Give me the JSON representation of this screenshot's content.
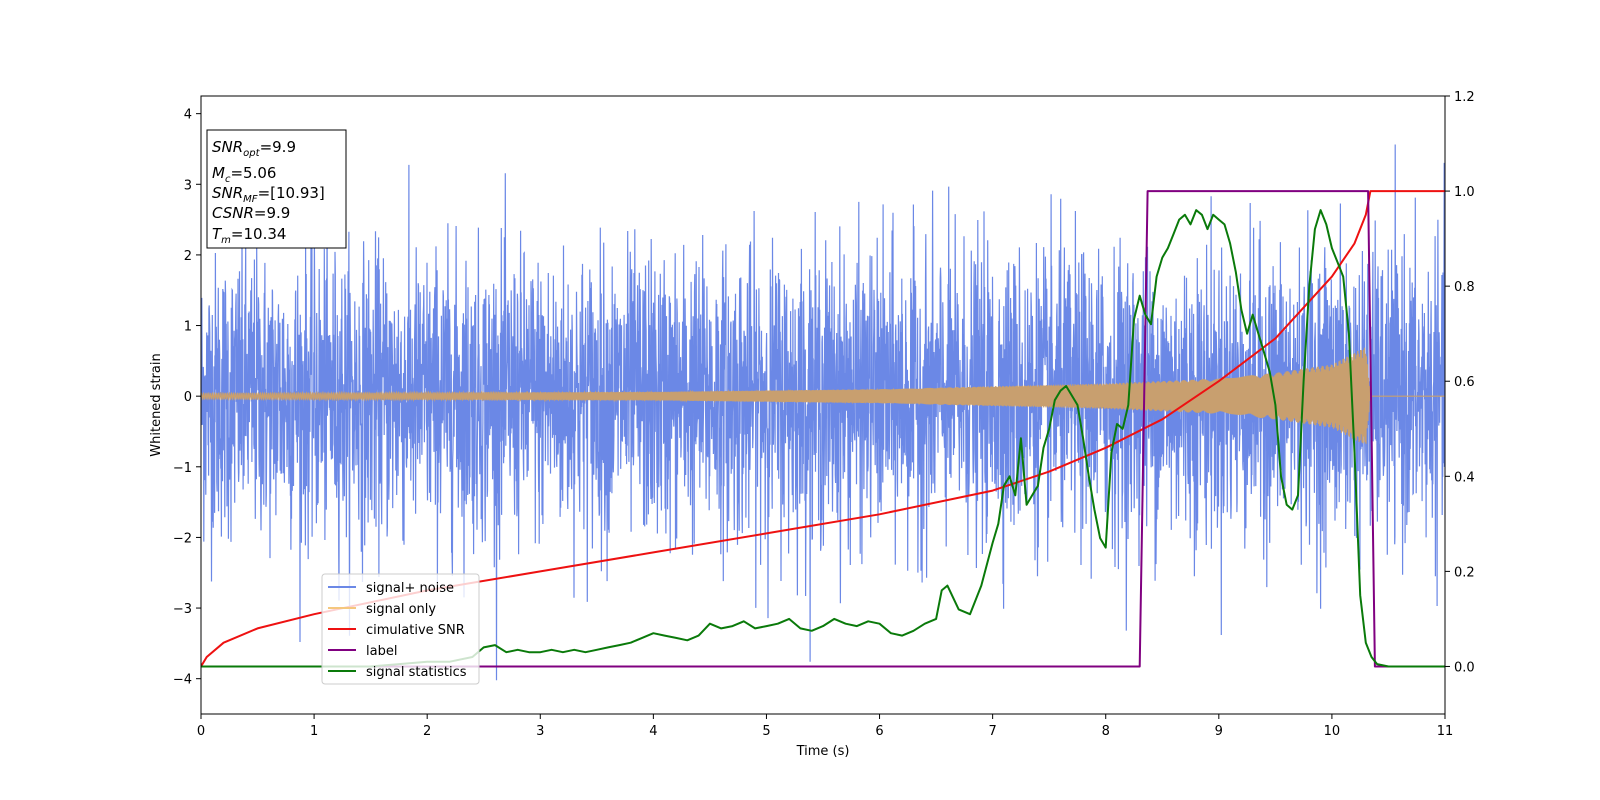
{
  "chart_data": {
    "type": "line",
    "xlabel": "Time (s)",
    "ylabel": "Whitened strain",
    "xlim": [
      0,
      11
    ],
    "ylim_left": [
      -4.5,
      4.25
    ],
    "ylim_right": [
      -0.1,
      1.2
    ],
    "x_ticks": [
      0,
      1,
      2,
      3,
      4,
      5,
      6,
      7,
      8,
      9,
      10,
      11
    ],
    "y_ticks_left": [
      -4,
      -3,
      -2,
      -1,
      0,
      1,
      2,
      3,
      4
    ],
    "y_ticks_right": [
      0.0,
      0.2,
      0.4,
      0.6,
      0.8,
      1.0,
      1.2
    ],
    "grid": false,
    "legend_position": "lower-left",
    "info_box": [
      {
        "base": "SNR",
        "sub": "opt",
        "rest": "=9.9"
      },
      {
        "base": "M",
        "sub": "c",
        "rest": "=5.06"
      },
      {
        "base": "SNR",
        "sub": "MF",
        "rest": "=[10.93]"
      },
      {
        "base": "CSNR",
        "sub": "",
        "rest": "=9.9"
      },
      {
        "base": "T",
        "sub": "m",
        "rest": "=10.34"
      }
    ],
    "series": [
      {
        "name": "signal+ noise",
        "axis": "left",
        "color": "#6b88e6",
        "kind": "noise",
        "sigma": 1.0,
        "y_range": [
          -4.2,
          3.9
        ]
      },
      {
        "name": "signal only",
        "axis": "left",
        "color": "#c89f6f",
        "legend_color": "#f5c77e",
        "kind": "chirp",
        "t_merge": 10.34,
        "envelope": [
          [
            0,
            0.04
          ],
          [
            2,
            0.05
          ],
          [
            4,
            0.06
          ],
          [
            6,
            0.1
          ],
          [
            8,
            0.18
          ],
          [
            9,
            0.25
          ],
          [
            9.5,
            0.33
          ],
          [
            10,
            0.45
          ],
          [
            10.3,
            0.7
          ],
          [
            10.34,
            0.0
          ],
          [
            11,
            0.0
          ]
        ]
      },
      {
        "name": "cimulative SNR",
        "axis": "right",
        "color": "#ee1111",
        "x": [
          0,
          0.05,
          0.2,
          0.5,
          1,
          2,
          3,
          4,
          5,
          6,
          7,
          7.5,
          8,
          8.5,
          9,
          9.5,
          10,
          10.2,
          10.3,
          10.34,
          10.36,
          11
        ],
        "y": [
          0.0,
          0.02,
          0.05,
          0.08,
          0.11,
          0.16,
          0.2,
          0.24,
          0.28,
          0.32,
          0.37,
          0.41,
          0.46,
          0.52,
          0.6,
          0.69,
          0.82,
          0.89,
          0.95,
          1.0,
          1.0,
          1.0
        ]
      },
      {
        "name": "label",
        "axis": "right",
        "color": "#800080",
        "x": [
          0,
          8.3,
          8.37,
          10.32,
          10.38,
          11
        ],
        "y": [
          0.0,
          0.0,
          1.0,
          1.0,
          0.0,
          0.0
        ]
      },
      {
        "name": "signal statistics",
        "axis": "right",
        "color": "#0a7a0a",
        "x": [
          0,
          0.5,
          1,
          1.5,
          2,
          2.2,
          2.4,
          2.5,
          2.6,
          2.7,
          2.8,
          2.9,
          3,
          3.1,
          3.2,
          3.3,
          3.4,
          3.5,
          3.6,
          3.7,
          3.8,
          3.9,
          4,
          4.1,
          4.2,
          4.3,
          4.4,
          4.5,
          4.6,
          4.7,
          4.8,
          4.9,
          5,
          5.1,
          5.2,
          5.3,
          5.4,
          5.5,
          5.6,
          5.7,
          5.8,
          5.9,
          6,
          6.1,
          6.2,
          6.3,
          6.4,
          6.5,
          6.55,
          6.6,
          6.7,
          6.8,
          6.9,
          7,
          7.05,
          7.1,
          7.15,
          7.2,
          7.25,
          7.3,
          7.35,
          7.4,
          7.45,
          7.5,
          7.55,
          7.6,
          7.65,
          7.7,
          7.75,
          7.8,
          7.85,
          7.9,
          7.95,
          8,
          8.05,
          8.1,
          8.15,
          8.2,
          8.25,
          8.3,
          8.35,
          8.4,
          8.45,
          8.5,
          8.55,
          8.6,
          8.65,
          8.7,
          8.75,
          8.8,
          8.85,
          8.9,
          8.95,
          9,
          9.05,
          9.1,
          9.15,
          9.2,
          9.25,
          9.3,
          9.35,
          9.4,
          9.45,
          9.5,
          9.55,
          9.6,
          9.65,
          9.7,
          9.75,
          9.8,
          9.85,
          9.9,
          9.95,
          10,
          10.05,
          10.1,
          10.15,
          10.2,
          10.25,
          10.3,
          10.35,
          10.4,
          10.5,
          11
        ],
        "y": [
          0.0,
          0.0,
          0.0,
          0.0,
          0.01,
          0.01,
          0.02,
          0.04,
          0.045,
          0.03,
          0.035,
          0.03,
          0.03,
          0.035,
          0.03,
          0.035,
          0.03,
          0.035,
          0.04,
          0.045,
          0.05,
          0.06,
          0.07,
          0.065,
          0.06,
          0.055,
          0.065,
          0.09,
          0.08,
          0.085,
          0.095,
          0.08,
          0.085,
          0.09,
          0.1,
          0.08,
          0.075,
          0.085,
          0.1,
          0.09,
          0.085,
          0.095,
          0.09,
          0.07,
          0.065,
          0.075,
          0.09,
          0.1,
          0.16,
          0.17,
          0.12,
          0.11,
          0.17,
          0.26,
          0.3,
          0.38,
          0.4,
          0.36,
          0.48,
          0.34,
          0.36,
          0.38,
          0.46,
          0.5,
          0.56,
          0.58,
          0.59,
          0.57,
          0.55,
          0.48,
          0.4,
          0.33,
          0.27,
          0.25,
          0.45,
          0.51,
          0.5,
          0.55,
          0.73,
          0.78,
          0.74,
          0.72,
          0.82,
          0.86,
          0.88,
          0.91,
          0.94,
          0.95,
          0.93,
          0.96,
          0.95,
          0.92,
          0.95,
          0.94,
          0.93,
          0.89,
          0.83,
          0.75,
          0.7,
          0.74,
          0.7,
          0.66,
          0.62,
          0.55,
          0.4,
          0.34,
          0.33,
          0.36,
          0.6,
          0.8,
          0.92,
          0.96,
          0.93,
          0.88,
          0.85,
          0.82,
          0.7,
          0.45,
          0.15,
          0.05,
          0.02,
          0.005,
          0.0,
          0.0
        ]
      }
    ]
  }
}
